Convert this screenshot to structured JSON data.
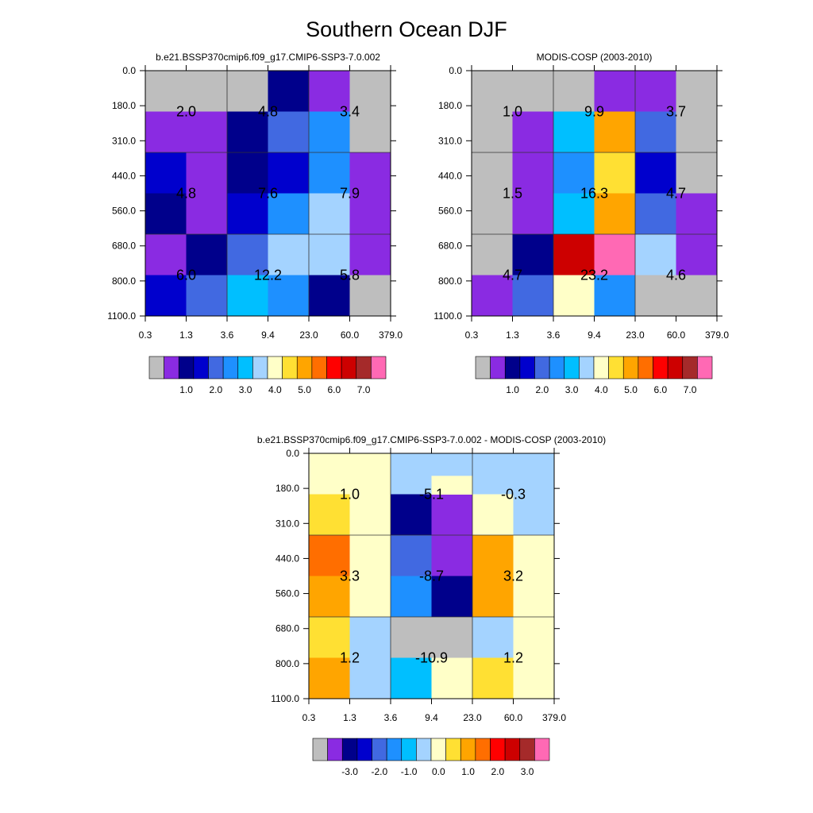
{
  "figure_title": "Southern Ocean DJF",
  "colors": {
    "gray": "#bebebe",
    "violet": "#8a2be2",
    "navy": "#00008b",
    "blue": "#0000cd",
    "royal": "#4169e1",
    "dodger": "#1e90ff",
    "deepsky": "#00bfff",
    "lightsky": "#a4d3ff",
    "cream": "#ffffc8",
    "gold": "#ffe033",
    "orange": "#ffa500",
    "darkorange": "#ff6e00",
    "red": "#ff0000",
    "crimson": "#cd0000",
    "brown": "#a52a2a",
    "pink": "#ff69b4"
  },
  "chart_data": [
    {
      "type": "heatmap",
      "title": "b.e21.BSSP370cmip6.f09_g17.CMIP6-SSP3-7.0.002",
      "x_ticks": [
        "0.3",
        "1.3",
        "3.6",
        "9.4",
        "23.0",
        "60.0",
        "379.0"
      ],
      "y_ticks": [
        "0.0",
        "180.0",
        "310.0",
        "440.0",
        "560.0",
        "680.0",
        "800.0",
        "1100.0"
      ],
      "cells": [
        [
          "gray",
          "gray",
          "gray",
          "navy",
          "violet",
          "gray"
        ],
        [
          "violet",
          "violet",
          "navy",
          "royal",
          "dodger",
          "gray"
        ],
        [
          "blue",
          "violet",
          "navy",
          "blue",
          "dodger",
          "violet"
        ],
        [
          "navy",
          "violet",
          "blue",
          "dodger",
          "lightsky",
          "violet"
        ],
        [
          "violet",
          "navy",
          "royal",
          "lightsky",
          "lightsky",
          "violet"
        ],
        [
          "blue",
          "royal",
          "deepsky",
          "dodger",
          "navy",
          "gray"
        ]
      ],
      "block_labels": [
        [
          "2.0",
          "4.8",
          "3.4"
        ],
        [
          "4.8",
          "7.6",
          "7.9"
        ],
        [
          "6.0",
          "12.2",
          "5.8"
        ]
      ],
      "colorbar": {
        "colors": [
          "gray",
          "violet",
          "navy",
          "blue",
          "royal",
          "dodger",
          "deepsky",
          "lightsky",
          "cream",
          "gold",
          "orange",
          "darkorange",
          "red",
          "crimson",
          "brown",
          "pink"
        ],
        "labels": [
          "1.0",
          "2.0",
          "3.0",
          "4.0",
          "5.0",
          "6.0",
          "7.0"
        ]
      }
    },
    {
      "type": "heatmap",
      "title": "MODIS-COSP (2003-2010)",
      "x_ticks": [
        "0.3",
        "1.3",
        "3.6",
        "9.4",
        "23.0",
        "60.0",
        "379.0"
      ],
      "y_ticks": [
        "0.0",
        "180.0",
        "310.0",
        "440.0",
        "560.0",
        "680.0",
        "800.0",
        "1100.0"
      ],
      "cells": [
        [
          "gray",
          "gray",
          "gray",
          "violet",
          "violet",
          "gray"
        ],
        [
          "gray",
          "violet",
          "deepsky",
          "orange",
          "royal",
          "gray"
        ],
        [
          "gray",
          "violet",
          "dodger",
          "gold",
          "blue",
          "gray"
        ],
        [
          "gray",
          "violet",
          "deepsky",
          "orange",
          "royal",
          "violet"
        ],
        [
          "gray",
          "navy",
          "crimson",
          "pink",
          "lightsky",
          "violet"
        ],
        [
          "violet",
          "royal",
          "cream",
          "dodger",
          "gray",
          "gray"
        ]
      ],
      "block_labels": [
        [
          "1.0",
          "9.9",
          "3.7"
        ],
        [
          "1.5",
          "16.3",
          "4.7"
        ],
        [
          "4.7",
          "23.2",
          "4.6"
        ]
      ],
      "colorbar": {
        "colors": [
          "gray",
          "violet",
          "navy",
          "blue",
          "royal",
          "dodger",
          "deepsky",
          "lightsky",
          "cream",
          "gold",
          "orange",
          "darkorange",
          "red",
          "crimson",
          "brown",
          "pink"
        ],
        "labels": [
          "1.0",
          "2.0",
          "3.0",
          "4.0",
          "5.0",
          "6.0",
          "7.0"
        ]
      }
    },
    {
      "type": "heatmap",
      "title": "b.e21.BSSP370cmip6.f09_g17.CMIP6-SSP3-7.0.002 - MODIS-COSP (2003-2010)",
      "x_ticks": [
        "0.3",
        "1.3",
        "3.6",
        "9.4",
        "23.0",
        "60.0",
        "379.0"
      ],
      "y_ticks": [
        "0.0",
        "180.0",
        "310.0",
        "440.0",
        "560.0",
        "680.0",
        "800.0",
        "1100.0"
      ],
      "cells": [
        [
          "cream",
          "cream",
          "lightsky",
          "lightsky",
          "lightsky",
          "lightsky"
        ],
        [
          "gold",
          "cream",
          "navy",
          "violet",
          "cream",
          "lightsky"
        ],
        [
          "darkorange",
          "cream",
          "royal",
          "violet",
          "orange",
          "cream"
        ],
        [
          "orange",
          "cream",
          "dodger",
          "navy",
          "orange",
          "cream"
        ],
        [
          "gold",
          "lightsky",
          "gray",
          "gray",
          "lightsky",
          "cream"
        ],
        [
          "orange",
          "lightsky",
          "deepsky",
          "cream",
          "gold",
          "cream"
        ]
      ],
      "cell_overrides": [
        {
          "row": 0,
          "col": 3,
          "lower_color": "cream"
        }
      ],
      "block_labels": [
        [
          "1.0",
          "-5.1",
          "-0.3"
        ],
        [
          "3.3",
          "-8.7",
          "3.2"
        ],
        [
          "1.2",
          "-10.9",
          "1.2"
        ]
      ],
      "colorbar": {
        "colors": [
          "gray",
          "violet",
          "navy",
          "blue",
          "royal",
          "dodger",
          "deepsky",
          "lightsky",
          "cream",
          "gold",
          "orange",
          "darkorange",
          "red",
          "crimson",
          "brown",
          "pink"
        ],
        "labels": [
          "-3.0",
          "-2.0",
          "-1.0",
          "0.0",
          "1.0",
          "2.0",
          "3.0"
        ]
      }
    }
  ]
}
